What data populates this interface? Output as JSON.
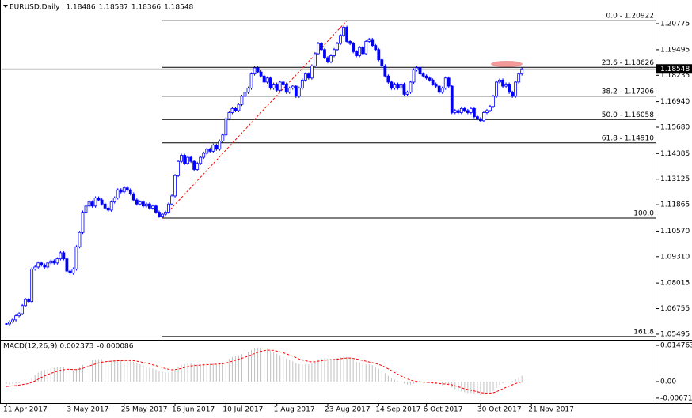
{
  "chart_data": {
    "type": "candlestick",
    "header": {
      "symbol": "EURUSD,Daily",
      "ohlc": [
        1.18486,
        1.18587,
        1.18366,
        1.18548
      ]
    },
    "price_label": 1.18548,
    "xlim": [
      -1.5,
      204
    ],
    "xticks": [
      {
        "value": 0,
        "label": "11 Apr 2017"
      },
      {
        "value": 20,
        "label": "3 May 2017"
      },
      {
        "value": 37,
        "label": "25 May 2017"
      },
      {
        "value": 53,
        "label": "16 Jun 2017"
      },
      {
        "value": 69,
        "label": "10 Jul 2017"
      },
      {
        "value": 85,
        "label": "1 Aug 2017"
      },
      {
        "value": 101,
        "label": "23 Aug 2017"
      },
      {
        "value": 117,
        "label": "14 Sep 2017"
      },
      {
        "value": 132,
        "label": "6 Oct 2017"
      },
      {
        "value": 149,
        "label": "30 Oct 2017"
      },
      {
        "value": 165,
        "label": "21 Nov 2017"
      }
    ],
    "ylim": [
      1.0522,
      1.2163
    ],
    "yticks": [
      1.20775,
      1.19495,
      1.18235,
      {
        "value": 1.1694,
        "label": "1.16940"
      },
      {
        "value": 1.1568,
        "label": "1.15680"
      },
      1.14385,
      1.13125,
      1.11865,
      {
        "value": 1.1057,
        "label": "1.10570"
      },
      {
        "value": 1.0931,
        "label": "1.09310"
      },
      1.08015,
      1.06755,
      1.05495
    ],
    "color": "#0000ff",
    "close": [
      1.06,
      1.061,
      1.062,
      1.064,
      1.065,
      1.069,
      1.072,
      1.071,
      1.087,
      1.088,
      1.09,
      1.089,
      1.088,
      1.09,
      1.091,
      1.09,
      1.092,
      1.095,
      1.092,
      1.086,
      1.085,
      1.087,
      1.098,
      1.105,
      1.115,
      1.118,
      1.12,
      1.118,
      1.122,
      1.121,
      1.119,
      1.117,
      1.116,
      1.12,
      1.122,
      1.126,
      1.125,
      1.127,
      1.126,
      1.124,
      1.121,
      1.119,
      1.12,
      1.118,
      1.119,
      1.117,
      1.118,
      1.115,
      1.113,
      1.114,
      1.115,
      1.119,
      1.123,
      1.133,
      1.14,
      1.143,
      1.139,
      1.142,
      1.14,
      1.136,
      1.139,
      1.142,
      1.144,
      1.146,
      1.145,
      1.148,
      1.146,
      1.15,
      1.153,
      1.161,
      1.164,
      1.166,
      1.165,
      1.168,
      1.172,
      1.174,
      1.176,
      1.183,
      1.186,
      1.184,
      1.182,
      1.179,
      1.181,
      1.176,
      1.178,
      1.175,
      1.179,
      1.178,
      1.174,
      1.176,
      1.177,
      1.172,
      1.176,
      1.18,
      1.183,
      1.181,
      1.187,
      1.193,
      1.198,
      1.195,
      1.191,
      1.189,
      1.192,
      1.195,
      1.198,
      1.202,
      1.206,
      1.199,
      1.198,
      1.194,
      1.192,
      1.196,
      1.193,
      1.199,
      1.2,
      1.197,
      1.195,
      1.19,
      1.187,
      1.182,
      1.179,
      1.176,
      1.178,
      1.176,
      1.178,
      1.173,
      1.174,
      1.179,
      1.185,
      1.186,
      1.183,
      1.182,
      1.181,
      1.18,
      1.178,
      1.177,
      1.174,
      1.176,
      1.181,
      1.177,
      1.164,
      1.165,
      1.164,
      1.166,
      1.165,
      1.164,
      1.166,
      1.162,
      1.161,
      1.16,
      1.164,
      1.165,
      1.167,
      1.172,
      1.179,
      1.18,
      1.177,
      1.178,
      1.174,
      1.172,
      1.179,
      1.183,
      1.18548
    ],
    "fib_color": "#000000",
    "fib_levels": [
      {
        "price": 1.20922,
        "label": "0.0 - 1.20922"
      },
      {
        "price": 1.18626,
        "label": "23.6 - 1.18626"
      },
      {
        "price": 1.17206,
        "label": "38.2 - 1.17206"
      },
      {
        "price": 1.16058,
        "label": "50.0 - 1.16058"
      },
      {
        "price": 1.1491,
        "label": "61.8 - 1.14910"
      },
      {
        "price": 1.1121,
        "label": "100.0"
      },
      {
        "price": 1.0538,
        "label": "161.8"
      }
    ],
    "fib_start": 49,
    "trendline": {
      "x": [
        49,
        107
      ],
      "y": [
        1.1121,
        1.20922
      ],
      "color": "#ff0000"
    },
    "macd": {
      "title": "MACD(12,26,9)",
      "current": [
        0.002373,
        -8.6e-05
      ],
      "ylim": [
        -0.00867,
        0.01637
      ],
      "yticks": [
        0.014763,
        {
          "value": 0,
          "label": "0.00"
        },
        -0.006713
      ],
      "hist_color": "#c0c0c0",
      "signal_color": "#ff0000",
      "values": [
        -0.001,
        -0.0012,
        -0.001,
        -0.0008,
        -0.0006,
        -0.0003,
        0.0,
        0.0002,
        0.0015,
        0.0027,
        0.0037,
        0.0044,
        0.0048,
        0.0052,
        0.0055,
        0.0056,
        0.0058,
        0.006,
        0.0059,
        0.0054,
        0.0049,
        0.0046,
        0.005,
        0.0058,
        0.0068,
        0.0076,
        0.0083,
        0.0086,
        0.009,
        0.0092,
        0.0092,
        0.009,
        0.0087,
        0.0086,
        0.0086,
        0.0088,
        0.0088,
        0.0089,
        0.0088,
        0.0085,
        0.008,
        0.0075,
        0.0071,
        0.0066,
        0.0062,
        0.0057,
        0.0054,
        0.0049,
        0.0044,
        0.004,
        0.0037,
        0.0037,
        0.004,
        0.005,
        0.006,
        0.0068,
        0.0071,
        0.0074,
        0.0074,
        0.0071,
        0.007,
        0.0071,
        0.0072,
        0.0073,
        0.0073,
        0.0074,
        0.0073,
        0.0075,
        0.0078,
        0.0086,
        0.0093,
        0.01,
        0.0103,
        0.0107,
        0.0112,
        0.0117,
        0.0121,
        0.0129,
        0.0136,
        0.0139,
        0.0139,
        0.0136,
        0.0134,
        0.0127,
        0.0121,
        0.0113,
        0.0108,
        0.0102,
        0.0094,
        0.0088,
        0.0083,
        0.0075,
        0.0071,
        0.007,
        0.0071,
        0.007,
        0.0074,
        0.0082,
        0.0091,
        0.0095,
        0.0095,
        0.0093,
        0.0093,
        0.0094,
        0.0096,
        0.01,
        0.0105,
        0.01,
        0.0095,
        0.0088,
        0.0081,
        0.0078,
        0.0072,
        0.0071,
        0.007,
        0.0066,
        0.0061,
        0.0053,
        0.0044,
        0.0034,
        0.0024,
        0.0014,
        0.0008,
        0.0002,
        -0.0002,
        -0.0008,
        -0.0012,
        -0.0012,
        -0.0008,
        -0.0005,
        -0.0004,
        -0.0004,
        -0.0005,
        -0.0006,
        -0.0008,
        -0.001,
        -0.0013,
        -0.0014,
        -0.0012,
        -0.0014,
        -0.0024,
        -0.0031,
        -0.0037,
        -0.004,
        -0.0043,
        -0.0046,
        -0.0046,
        -0.0049,
        -0.0052,
        -0.0054,
        -0.0053,
        -0.005,
        -0.0046,
        -0.0038,
        -0.0025,
        -0.0013,
        -0.0007,
        -0.0002,
        0.0,
        0.0002,
        0.001,
        0.0018,
        0.002373
      ],
      "signal": [
        -0.002,
        -0.0018,
        -0.0017,
        -0.0016,
        -0.0014,
        -0.0012,
        -0.001,
        -0.0008,
        -0.0003,
        0.0003,
        0.001,
        0.0017,
        0.0023,
        0.0029,
        0.0034,
        0.0038,
        0.0042,
        0.0046,
        0.0048,
        0.005,
        0.005,
        0.0049,
        0.0049,
        0.0051,
        0.0054,
        0.0059,
        0.0063,
        0.0068,
        0.0072,
        0.0076,
        0.0079,
        0.0081,
        0.0082,
        0.0083,
        0.0084,
        0.0085,
        0.0085,
        0.0086,
        0.0086,
        0.0086,
        0.0085,
        0.0083,
        0.0081,
        0.0078,
        0.0075,
        0.0072,
        0.0068,
        0.0065,
        0.0061,
        0.0057,
        0.0053,
        0.005,
        0.0048,
        0.0049,
        0.0051,
        0.0054,
        0.0058,
        0.0061,
        0.0064,
        0.0065,
        0.0066,
        0.0067,
        0.0068,
        0.0069,
        0.007,
        0.007,
        0.0071,
        0.0072,
        0.0073,
        0.0076,
        0.0079,
        0.0083,
        0.0087,
        0.0091,
        0.0095,
        0.0099,
        0.0104,
        0.0109,
        0.0114,
        0.0119,
        0.0123,
        0.0126,
        0.0128,
        0.0128,
        0.0127,
        0.0124,
        0.0121,
        0.0117,
        0.0113,
        0.0108,
        0.0103,
        0.0098,
        0.0092,
        0.0088,
        0.0085,
        0.0082,
        0.008,
        0.0081,
        0.0083,
        0.0085,
        0.0087,
        0.0088,
        0.0089,
        0.009,
        0.0091,
        0.0093,
        0.0095,
        0.0096,
        0.0096,
        0.0094,
        0.0092,
        0.0089,
        0.0086,
        0.0083,
        0.008,
        0.0077,
        0.0074,
        0.007,
        0.0065,
        0.0059,
        0.0052,
        0.0045,
        0.0037,
        0.003,
        0.0023,
        0.0017,
        0.0011,
        0.0006,
        0.0003,
        0.0001,
        -0.0001,
        -0.0002,
        -0.0003,
        -0.0004,
        -0.0005,
        -0.0006,
        -0.0007,
        -0.0009,
        -0.001,
        -0.0011,
        -0.0013,
        -0.0017,
        -0.0021,
        -0.0025,
        -0.0029,
        -0.0032,
        -0.0035,
        -0.0038,
        -0.0041,
        -0.0044,
        -0.0046,
        -0.0047,
        -0.0047,
        -0.0045,
        -0.0041,
        -0.0035,
        -0.0029,
        -0.0023,
        -0.0018,
        -0.0013,
        -0.0008,
        -0.0004,
        -8.6e-05
      ]
    }
  }
}
